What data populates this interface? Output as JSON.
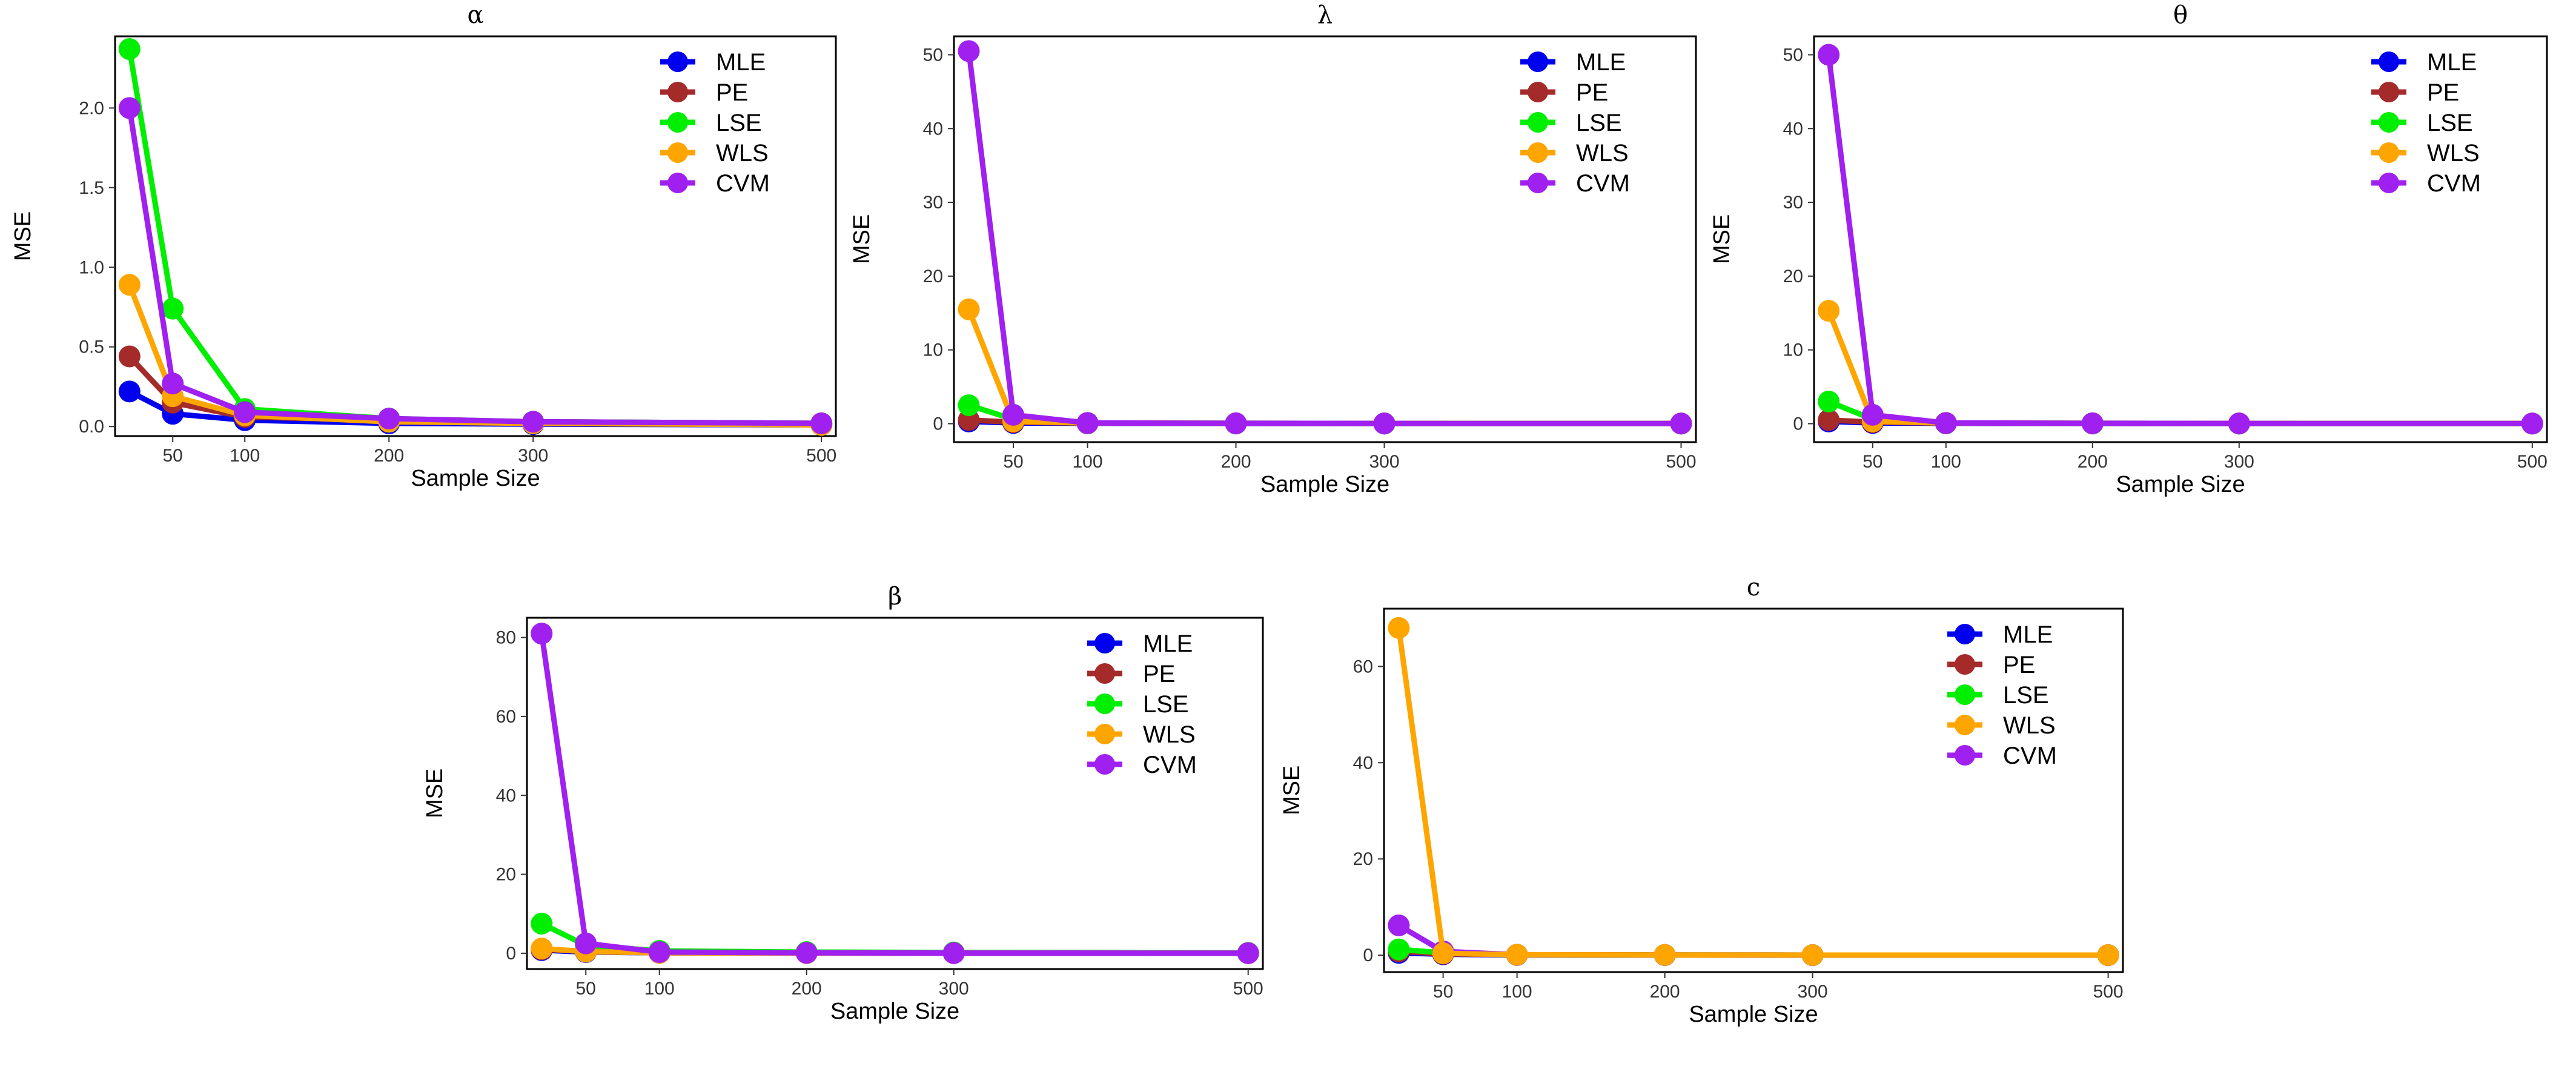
{
  "colors": {
    "MLE": "#0000ee",
    "PE": "#a52a2a",
    "LSE": "#00ee00",
    "WLS": "#ffa500",
    "CVM": "#a020f0"
  },
  "chart_data": [
    {
      "type": "line",
      "title": "α",
      "xlabel": "Sample Size",
      "ylabel": "MSE",
      "xticks": [
        50,
        100,
        200,
        300,
        500
      ],
      "yticks": [
        "0.0",
        "0.5",
        "1.0",
        "1.5",
        "2.0"
      ],
      "ytick_values": [
        0,
        0.5,
        1.0,
        1.5,
        2.0
      ],
      "xlim": [
        10,
        510
      ],
      "ylim": [
        -0.06,
        2.45
      ],
      "x": [
        20,
        50,
        100,
        200,
        300,
        500
      ],
      "legend": [
        "MLE",
        "PE",
        "LSE",
        "WLS",
        "CVM"
      ],
      "legend_position": "top-right",
      "series": [
        {
          "name": "MLE",
          "values": [
            0.22,
            0.08,
            0.04,
            0.02,
            0.015,
            0.01
          ]
        },
        {
          "name": "PE",
          "values": [
            0.44,
            0.15,
            0.06,
            0.04,
            0.03,
            0.02
          ]
        },
        {
          "name": "LSE",
          "values": [
            2.37,
            0.74,
            0.11,
            0.05,
            0.03,
            0.02
          ]
        },
        {
          "name": "WLS",
          "values": [
            0.89,
            0.19,
            0.07,
            0.03,
            0.02,
            0.01
          ]
        },
        {
          "name": "CVM",
          "values": [
            2.0,
            0.27,
            0.09,
            0.05,
            0.03,
            0.02
          ]
        }
      ]
    },
    {
      "type": "line",
      "title": "λ",
      "xlabel": "Sample Size",
      "ylabel": "MSE",
      "xticks": [
        50,
        100,
        200,
        300,
        500
      ],
      "yticks": [
        "0",
        "10",
        "20",
        "30",
        "40",
        "50"
      ],
      "ytick_values": [
        0,
        10,
        20,
        30,
        40,
        50
      ],
      "xlim": [
        10,
        510
      ],
      "ylim": [
        -2.5,
        52.5
      ],
      "x": [
        20,
        50,
        100,
        200,
        300,
        500
      ],
      "legend": [
        "MLE",
        "PE",
        "LSE",
        "WLS",
        "CVM"
      ],
      "legend_position": "top-right",
      "series": [
        {
          "name": "MLE",
          "values": [
            0.3,
            0.1,
            0.05,
            0.02,
            0.01,
            0.01
          ]
        },
        {
          "name": "PE",
          "values": [
            0.5,
            0.2,
            0.08,
            0.04,
            0.03,
            0.02
          ]
        },
        {
          "name": "LSE",
          "values": [
            2.5,
            0.6,
            0.1,
            0.05,
            0.03,
            0.02
          ]
        },
        {
          "name": "WLS",
          "values": [
            15.5,
            0.3,
            0.1,
            0.05,
            0.03,
            0.02
          ]
        },
        {
          "name": "CVM",
          "values": [
            50.5,
            1.2,
            0.1,
            0.05,
            0.03,
            0.02
          ]
        }
      ]
    },
    {
      "type": "line",
      "title": "θ",
      "xlabel": "Sample Size",
      "ylabel": "MSE",
      "xticks": [
        50,
        100,
        200,
        300,
        500
      ],
      "yticks": [
        "0",
        "10",
        "20",
        "30",
        "40",
        "50"
      ],
      "ytick_values": [
        0,
        10,
        20,
        30,
        40,
        50
      ],
      "xlim": [
        10,
        510
      ],
      "ylim": [
        -2.5,
        52.5
      ],
      "x": [
        20,
        50,
        100,
        200,
        300,
        500
      ],
      "legend": [
        "MLE",
        "PE",
        "LSE",
        "WLS",
        "CVM"
      ],
      "legend_position": "top-right",
      "series": [
        {
          "name": "MLE",
          "values": [
            0.3,
            0.1,
            0.05,
            0.02,
            0.01,
            0.01
          ]
        },
        {
          "name": "PE",
          "values": [
            0.5,
            0.2,
            0.08,
            0.04,
            0.03,
            0.02
          ]
        },
        {
          "name": "LSE",
          "values": [
            3.0,
            0.6,
            0.1,
            0.05,
            0.03,
            0.02
          ]
        },
        {
          "name": "WLS",
          "values": [
            15.3,
            0.3,
            0.1,
            0.05,
            0.03,
            0.02
          ]
        },
        {
          "name": "CVM",
          "values": [
            50.0,
            1.2,
            0.1,
            0.05,
            0.03,
            0.02
          ]
        }
      ]
    },
    {
      "type": "line",
      "title": "β",
      "xlabel": "Sample Size",
      "ylabel": "MSE",
      "xticks": [
        50,
        100,
        200,
        300,
        500
      ],
      "yticks": [
        "0",
        "20",
        "40",
        "60",
        "80"
      ],
      "ytick_values": [
        0,
        20,
        40,
        60,
        80
      ],
      "xlim": [
        10,
        510
      ],
      "ylim": [
        -4,
        85
      ],
      "x": [
        20,
        50,
        100,
        200,
        300,
        500
      ],
      "legend": [
        "MLE",
        "PE",
        "LSE",
        "WLS",
        "CVM"
      ],
      "legend_position": "top-right",
      "series": [
        {
          "name": "MLE",
          "values": [
            0.8,
            0.3,
            0.1,
            0.05,
            0.03,
            0.02
          ]
        },
        {
          "name": "PE",
          "values": [
            1.0,
            0.5,
            0.2,
            0.08,
            0.05,
            0.03
          ]
        },
        {
          "name": "LSE",
          "values": [
            7.5,
            2.0,
            0.6,
            0.3,
            0.2,
            0.1
          ]
        },
        {
          "name": "WLS",
          "values": [
            1.2,
            0.4,
            0.1,
            0.05,
            0.03,
            0.02
          ]
        },
        {
          "name": "CVM",
          "values": [
            81.0,
            2.5,
            0.3,
            0.1,
            0.05,
            0.03
          ]
        }
      ]
    },
    {
      "type": "line",
      "title": "c",
      "xlabel": "Sample Size",
      "ylabel": "MSE",
      "xticks": [
        50,
        100,
        200,
        300,
        500
      ],
      "yticks": [
        "0",
        "20",
        "40",
        "60"
      ],
      "ytick_values": [
        0,
        20,
        40,
        60
      ],
      "xlim": [
        10,
        510
      ],
      "ylim": [
        -3.5,
        72
      ],
      "x": [
        20,
        50,
        100,
        200,
        300,
        500
      ],
      "legend": [
        "MLE",
        "PE",
        "LSE",
        "WLS",
        "CVM"
      ],
      "legend_position": "top-right",
      "series": [
        {
          "name": "MLE",
          "values": [
            0.5,
            0.2,
            0.05,
            0.02,
            0.01,
            0.01
          ]
        },
        {
          "name": "PE",
          "values": [
            0.8,
            0.3,
            0.1,
            0.05,
            0.03,
            0.02
          ]
        },
        {
          "name": "LSE",
          "values": [
            1.2,
            0.5,
            0.1,
            0.05,
            0.03,
            0.02
          ]
        },
        {
          "name": "CVM",
          "values": [
            6.2,
            0.8,
            0.1,
            0.05,
            0.03,
            0.02
          ]
        },
        {
          "name": "WLS",
          "values": [
            68.0,
            0.4,
            0.1,
            0.05,
            0.03,
            0.02
          ]
        }
      ]
    }
  ]
}
